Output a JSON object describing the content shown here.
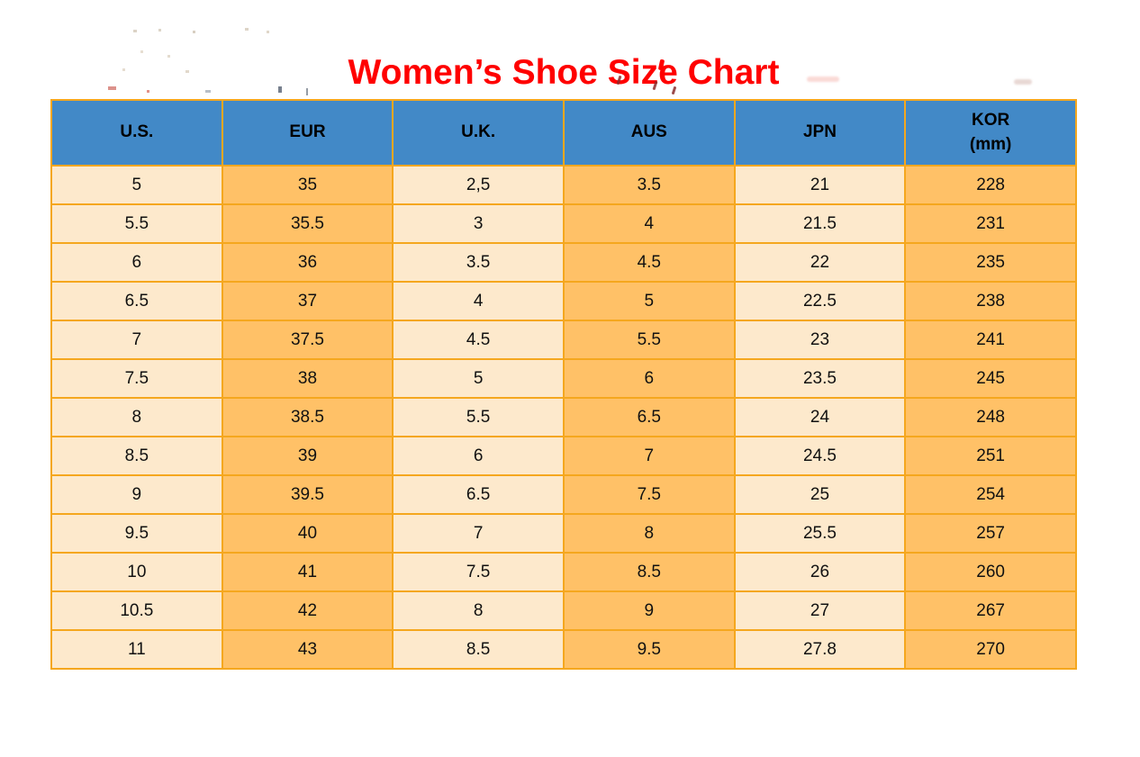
{
  "page": {
    "title": "Women’s Shoe Size Chart"
  },
  "colors": {
    "title_red": "#FF0000",
    "header_bg": "#4289C7",
    "header_text": "#000000",
    "column_light": "#FDE9CC",
    "column_dark": "#FFC167",
    "grid_border": "#F5A71E",
    "cell_text": "#111111"
  },
  "table": {
    "headers": [
      {
        "label": "U.S."
      },
      {
        "label": "EUR"
      },
      {
        "label": "U.K."
      },
      {
        "label": "AUS"
      },
      {
        "label": "JPN"
      },
      {
        "label": "KOR",
        "sub": "(mm)"
      }
    ],
    "rows": [
      [
        "5",
        "35",
        "2,5",
        "3.5",
        "21",
        "228"
      ],
      [
        "5.5",
        "35.5",
        "3",
        "4",
        "21.5",
        "231"
      ],
      [
        "6",
        "36",
        "3.5",
        "4.5",
        "22",
        "235"
      ],
      [
        "6.5",
        "37",
        "4",
        "5",
        "22.5",
        "238"
      ],
      [
        "7",
        "37.5",
        "4.5",
        "5.5",
        "23",
        "241"
      ],
      [
        "7.5",
        "38",
        "5",
        "6",
        "23.5",
        "245"
      ],
      [
        "8",
        "38.5",
        "5.5",
        "6.5",
        "24",
        "248"
      ],
      [
        "8.5",
        "39",
        "6",
        "7",
        "24.5",
        "251"
      ],
      [
        "9",
        "39.5",
        "6.5",
        "7.5",
        "25",
        "254"
      ],
      [
        "9.5",
        "40",
        "7",
        "8",
        "25.5",
        "257"
      ],
      [
        "10",
        "41",
        "7.5",
        "8.5",
        "26",
        "260"
      ],
      [
        "10.5",
        "42",
        "8",
        "9",
        "27",
        "267"
      ],
      [
        "11",
        "43",
        "8.5",
        "9.5",
        "27.8",
        "270"
      ]
    ]
  },
  "chart_data": {
    "type": "table",
    "title": "Women’s Shoe Size Chart",
    "columns": [
      "U.S.",
      "EUR",
      "U.K.",
      "AUS",
      "JPN",
      "KOR (mm)"
    ],
    "rows": [
      [
        "5",
        "35",
        "2,5",
        "3.5",
        "21",
        "228"
      ],
      [
        "5.5",
        "35.5",
        "3",
        "4",
        "21.5",
        "231"
      ],
      [
        "6",
        "36",
        "3.5",
        "4.5",
        "22",
        "235"
      ],
      [
        "6.5",
        "37",
        "4",
        "5",
        "22.5",
        "238"
      ],
      [
        "7",
        "37.5",
        "4.5",
        "5.5",
        "23",
        "241"
      ],
      [
        "7.5",
        "38",
        "5",
        "6",
        "23.5",
        "245"
      ],
      [
        "8",
        "38.5",
        "5.5",
        "6.5",
        "24",
        "248"
      ],
      [
        "8.5",
        "39",
        "6",
        "7",
        "24.5",
        "251"
      ],
      [
        "9",
        "39.5",
        "6.5",
        "7.5",
        "25",
        "254"
      ],
      [
        "9.5",
        "40",
        "7",
        "8",
        "25.5",
        "257"
      ],
      [
        "10",
        "41",
        "7.5",
        "8.5",
        "26",
        "260"
      ],
      [
        "10.5",
        "42",
        "8",
        "9",
        "27",
        "267"
      ],
      [
        "11",
        "43",
        "8.5",
        "9.5",
        "27.8",
        "270"
      ]
    ],
    "layout": {
      "header_fill": "#4289C7",
      "alternating_column_fills": [
        "#FDE9CC",
        "#FFC167"
      ],
      "grid": true
    }
  }
}
